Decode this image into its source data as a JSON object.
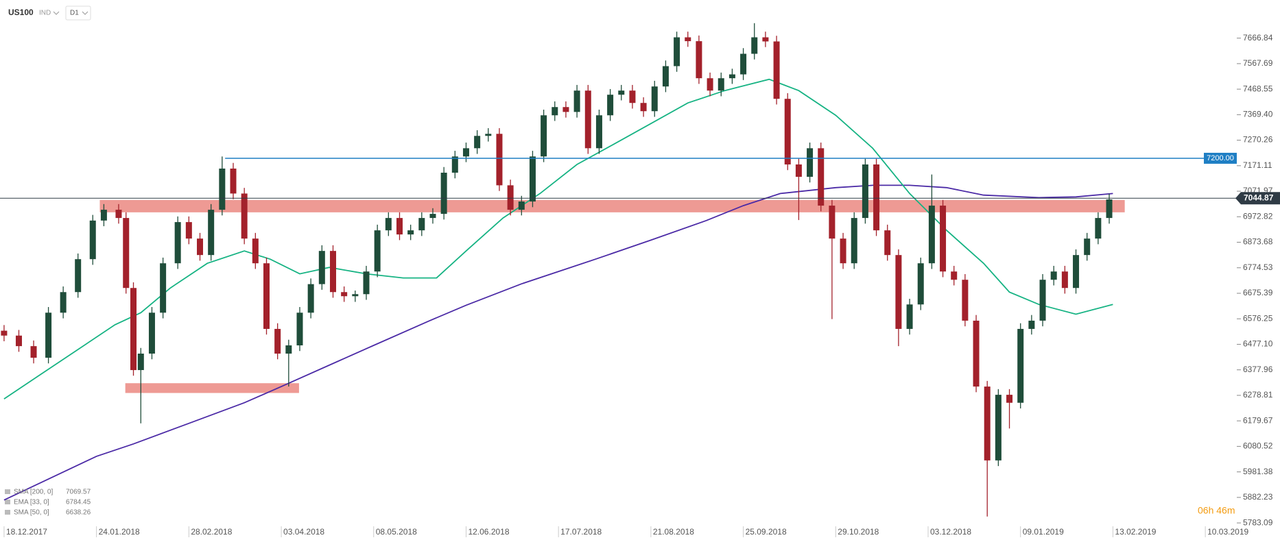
{
  "header": {
    "symbol": "US100",
    "market": "IND",
    "interval": "D1"
  },
  "chart_data": {
    "type": "candlestick",
    "up_color": "#1f4d3a",
    "down_color": "#a3212b",
    "xlim": [
      -1.1,
      332.4
    ],
    "ylim": [
      5770,
      7815
    ],
    "xticks": [
      {
        "value": 0,
        "label": "18.12.2017"
      },
      {
        "value": 25,
        "label": "24.01.2018"
      },
      {
        "value": 50,
        "label": "28.02.2018"
      },
      {
        "value": 75,
        "label": "03.04.2018"
      },
      {
        "value": 100,
        "label": "08.05.2018"
      },
      {
        "value": 125,
        "label": "12.06.2018"
      },
      {
        "value": 150,
        "label": "17.07.2018"
      },
      {
        "value": 175,
        "label": "21.08.2018"
      },
      {
        "value": 200,
        "label": "25.09.2018"
      },
      {
        "value": 225,
        "label": "29.10.2018"
      },
      {
        "value": 250,
        "label": "03.12.2018"
      },
      {
        "value": 275,
        "label": "09.01.2019"
      },
      {
        "value": 300,
        "label": "13.02.2019"
      },
      {
        "value": 325,
        "label": "10.03.2019"
      }
    ],
    "yticks": [
      7666.84,
      7567.69,
      7468.55,
      {
        "value": 7369.4,
        "label": "7369.40"
      },
      7270.26,
      7171.11,
      7071.97,
      6972.82,
      6873.68,
      6774.53,
      6675.39,
      6576.25,
      {
        "value": 6477.1,
        "label": "6477.10"
      },
      6377.96,
      6278.81,
      6179.67,
      6080.52,
      5981.38,
      5882.23,
      5783.09
    ],
    "candles": {
      "x": [
        0,
        4,
        8,
        12,
        16,
        20,
        24,
        27,
        31,
        33,
        35,
        37,
        40,
        43,
        47,
        50,
        53,
        56,
        59,
        62,
        65,
        68,
        71,
        74,
        77,
        80,
        83,
        86,
        89,
        92,
        95,
        98,
        101,
        104,
        107,
        110,
        113,
        116,
        119,
        122,
        125,
        128,
        131,
        134,
        137,
        140,
        143,
        146,
        149,
        152,
        155,
        158,
        161,
        164,
        167,
        170,
        173,
        176,
        179,
        182,
        185,
        188,
        191,
        194,
        197,
        200,
        203,
        206,
        209,
        212,
        215,
        218,
        221,
        224,
        227,
        230,
        233,
        236,
        239,
        242,
        245,
        248,
        251,
        254,
        257,
        260,
        263,
        266,
        269,
        272,
        275,
        278,
        281,
        284,
        287,
        290,
        293,
        296,
        299
      ],
      "open": [
        6530,
        6511,
        6470,
        6425,
        6600,
        6680,
        6808,
        6958,
        7000,
        6968,
        6696,
        6377,
        6441,
        6600,
        6792,
        6952,
        6888,
        6824,
        7000,
        7160,
        7063,
        6888,
        6792,
        6537,
        6441,
        6473,
        6600,
        6711,
        6840,
        6680,
        6664,
        6672,
        6760,
        6920,
        6968,
        6904,
        6920,
        6968,
        6984,
        7144,
        7207,
        7239,
        7287,
        7295,
        7095,
        7000,
        7032,
        7207,
        7367,
        7399,
        7380,
        7463,
        7239,
        7367,
        7447,
        7463,
        7415,
        7383,
        7479,
        7558,
        7670,
        7655,
        7511,
        7463,
        7511,
        7526,
        7606,
        7670,
        7654,
        7431,
        7176,
        7128,
        7239,
        7016,
        6888,
        6792,
        6968,
        7176,
        6920,
        6824,
        6537,
        6632,
        6792,
        7016,
        6760,
        6728,
        6569,
        6313,
        6026,
        6281,
        6250,
        6537,
        6569,
        6728,
        6760,
        6696,
        6824,
        6888,
        6968
      ],
      "high": [
        6552,
        6533,
        6492,
        6622,
        6702,
        6830,
        6980,
        7022,
        7022,
        6990,
        6718,
        6463,
        6622,
        6814,
        6974,
        6974,
        6910,
        7022,
        7207,
        7182,
        7085,
        6910,
        6814,
        6559,
        6495,
        6622,
        6733,
        6862,
        6862,
        6702,
        6686,
        6782,
        6942,
        6990,
        6990,
        6942,
        6990,
        7006,
        7166,
        7229,
        7261,
        7309,
        7317,
        7317,
        7117,
        7054,
        7229,
        7389,
        7421,
        7421,
        7485,
        7485,
        7389,
        7469,
        7485,
        7485,
        7437,
        7501,
        7580,
        7692,
        7692,
        7677,
        7533,
        7533,
        7548,
        7628,
        7725,
        7692,
        7676,
        7453,
        7198,
        7261,
        7261,
        7038,
        6910,
        6990,
        7198,
        7198,
        6942,
        6846,
        6654,
        6814,
        7137,
        7038,
        6782,
        6750,
        6591,
        6335,
        6303,
        6303,
        6559,
        6591,
        6750,
        6782,
        6782,
        6846,
        6910,
        6990,
        7062
      ],
      "low": [
        6489,
        6448,
        6403,
        6403,
        6578,
        6658,
        6786,
        6936,
        6946,
        6674,
        6355,
        6170,
        6419,
        6578,
        6770,
        6866,
        6802,
        6802,
        6978,
        7041,
        6866,
        6770,
        6515,
        6419,
        6313,
        6451,
        6578,
        6689,
        6658,
        6642,
        6642,
        6650,
        6738,
        6898,
        6882,
        6882,
        6898,
        6946,
        6962,
        7122,
        7185,
        7217,
        7265,
        7073,
        6978,
        6978,
        7010,
        7185,
        7345,
        7358,
        7358,
        7217,
        7217,
        7345,
        7425,
        7393,
        7361,
        7361,
        7457,
        7536,
        7633,
        7489,
        7441,
        7441,
        7489,
        7504,
        7584,
        7632,
        7409,
        7154,
        6960,
        7106,
        6994,
        6575,
        6770,
        6770,
        6946,
        6898,
        6802,
        6470,
        6515,
        6610,
        6770,
        6738,
        6706,
        6547,
        6291,
        5808,
        6004,
        6150,
        6228,
        6515,
        6547,
        6706,
        6674,
        6674,
        6802,
        6866,
        6946
      ],
      "close": [
        6511,
        6470,
        6425,
        6600,
        6680,
        6808,
        6958,
        7000,
        6968,
        6696,
        6377,
        6441,
        6600,
        6792,
        6952,
        6888,
        6824,
        7000,
        7160,
        7063,
        6888,
        6792,
        6537,
        6441,
        6473,
        6600,
        6711,
        6840,
        6680,
        6664,
        6672,
        6760,
        6920,
        6968,
        6904,
        6920,
        6968,
        6984,
        7144,
        7207,
        7239,
        7287,
        7295,
        7095,
        7000,
        7032,
        7207,
        7367,
        7399,
        7380,
        7463,
        7239,
        7367,
        7447,
        7463,
        7415,
        7383,
        7479,
        7558,
        7670,
        7655,
        7511,
        7463,
        7511,
        7526,
        7606,
        7670,
        7654,
        7431,
        7176,
        7128,
        7239,
        7016,
        6888,
        6792,
        6968,
        7176,
        6920,
        6824,
        6537,
        6632,
        6792,
        7016,
        6760,
        6728,
        6569,
        6313,
        6026,
        6281,
        6250,
        6537,
        6569,
        6728,
        6760,
        6696,
        6824,
        6888,
        6968,
        7040
      ]
    },
    "series": [
      {
        "name": "SMA [200, 0]",
        "last_value": 7069.57,
        "color": "#4b2aa6",
        "x": [
          0,
          25,
          35,
          50,
          65,
          75,
          90,
          100,
          115,
          125,
          140,
          160,
          175,
          190,
          200,
          210,
          225,
          235,
          245,
          255,
          265,
          280,
          290,
          300
        ],
        "values": [
          5872,
          6042,
          6090,
          6170,
          6250,
          6313,
          6409,
          6473,
          6568,
          6629,
          6712,
          6808,
          6882,
          6958,
          7016,
          7063,
          7086,
          7095,
          7095,
          7086,
          7057,
          7047,
          7050,
          7063
        ]
      },
      {
        "name": "EMA [33, 0]",
        "last_value": 6784.45
      },
      {
        "name": "SMA [50, 0]",
        "last_value": 6638.26,
        "color": "#16b383",
        "x": [
          0,
          10,
          20,
          30,
          37,
          45,
          55,
          65,
          72,
          80,
          88,
          98,
          108,
          117,
          125,
          135,
          145,
          155,
          165,
          175,
          185,
          195,
          207,
          215,
          225,
          235,
          245,
          255,
          265,
          272,
          280,
          290,
          300
        ],
        "values": [
          6265,
          6361,
          6457,
          6553,
          6600,
          6696,
          6792,
          6840,
          6808,
          6751,
          6776,
          6751,
          6735,
          6735,
          6840,
          6968,
          7063,
          7176,
          7255,
          7335,
          7415,
          7463,
          7507,
          7463,
          7367,
          7239,
          7063,
          6920,
          6792,
          6680,
          6632,
          6594,
          6632
        ]
      }
    ],
    "zones": [
      {
        "from": 6990,
        "to": 7038,
        "x": [
          25.9,
          303.2
        ],
        "color": "#ee9a94"
      },
      {
        "from": 6288,
        "to": 6326,
        "x": [
          32.8,
          79.8
        ],
        "color": "#ee9a94"
      }
    ],
    "levels": [
      {
        "value": 7200,
        "label": "7200.00",
        "x_start": 59.8,
        "color": "#1f7fc4"
      }
    ],
    "last_price": 7044.87,
    "last_price_color": "#2f3b45",
    "countdown": "06h 46m"
  }
}
